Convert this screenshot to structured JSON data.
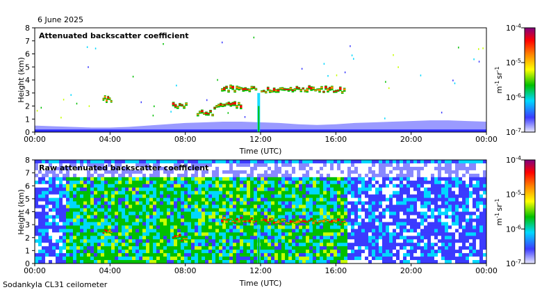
{
  "date_label": "6 June 2025",
  "footer_label": "Sodankyla CL31 ceilometer",
  "chart_data": [
    {
      "type": "heatmap",
      "title": "Attenuated backscatter coefficient",
      "xlabel": "Time (UTC)",
      "ylabel": "Height (km)",
      "xticks": [
        "00:00",
        "04:00",
        "08:00",
        "12:00",
        "16:00",
        "20:00",
        "00:00"
      ],
      "xlim": [
        0,
        24
      ],
      "yticks": [
        "0",
        "1",
        "2",
        "3",
        "4",
        "5",
        "6",
        "7",
        "8"
      ],
      "ylim": [
        0,
        8
      ],
      "colorbar": {
        "label_base": "m",
        "label_exp1": "-1",
        "label_unit": "sr",
        "label_exp2": "-1",
        "tick_base": [
          "10",
          "10",
          "10",
          "10"
        ],
        "tick_exp": [
          "-4",
          "-5",
          "-6",
          "-7"
        ],
        "scale": "log",
        "range": [
          1e-07,
          0.0001
        ],
        "colors": [
          "#e8e8ff",
          "#3b3bff",
          "#00d8ff",
          "#00c000",
          "#ffff00",
          "#ff8000",
          "#ff0000",
          "#800080"
        ]
      },
      "layers": [
        {
          "kind": "boundary",
          "height_km": [
            0.5,
            0.45,
            0.4,
            0.35,
            0.35,
            0.4,
            0.5,
            0.6,
            0.7,
            0.75,
            0.8,
            0.8,
            0.75,
            0.7,
            0.6,
            0.55,
            0.6,
            0.7,
            0.75,
            0.8,
            0.85,
            0.9,
            0.9,
            0.85,
            0.8
          ]
        },
        {
          "kind": "cloud",
          "start_h": 3.6,
          "end_h": 4.1,
          "base_km": 2.35
        },
        {
          "kind": "cloud",
          "start_h": 7.3,
          "end_h": 8.1,
          "base_km": 1.85
        },
        {
          "kind": "cloud",
          "start_h": 8.6,
          "end_h": 9.5,
          "base_km": 1.3
        },
        {
          "kind": "cloud",
          "start_h": 9.5,
          "end_h": 11.0,
          "base_km": 1.9
        },
        {
          "kind": "cloud",
          "start_h": 9.9,
          "end_h": 11.8,
          "base_km": 3.2
        },
        {
          "kind": "cloud",
          "start_h": 12.0,
          "end_h": 16.5,
          "base_km": 3.1
        }
      ]
    },
    {
      "type": "heatmap",
      "title": "Raw attenuated backscatter coefficient",
      "xlabel": "Time (UTC)",
      "ylabel": "Height (km)",
      "xticks": [
        "00:00",
        "04:00",
        "08:00",
        "12:00",
        "16:00",
        "20:00",
        "00:00"
      ],
      "xlim": [
        0,
        24
      ],
      "yticks": [
        "0",
        "1",
        "2",
        "3",
        "4",
        "5",
        "6",
        "7",
        "8"
      ],
      "ylim": [
        0,
        8
      ],
      "colorbar": {
        "label_base": "m",
        "label_exp1": "-1",
        "label_unit": "sr",
        "label_exp2": "-1",
        "tick_base": [
          "10",
          "10",
          "10",
          "10"
        ],
        "tick_exp": [
          "-4",
          "-5",
          "-6",
          "-7"
        ],
        "scale": "log",
        "range": [
          1e-07,
          0.0001
        ],
        "colors": [
          "#e8e8ff",
          "#3b3bff",
          "#00d8ff",
          "#00c000",
          "#ffff00",
          "#ff8000",
          "#ff0000",
          "#800080"
        ]
      },
      "noise": {
        "green_start_h": 1.5,
        "green_end_h": 16.5
      },
      "layers": [
        {
          "kind": "cloud",
          "start_h": 3.6,
          "end_h": 4.1,
          "base_km": 2.35
        },
        {
          "kind": "cloud",
          "start_h": 7.3,
          "end_h": 8.1,
          "base_km": 1.85
        },
        {
          "kind": "cloud",
          "start_h": 9.9,
          "end_h": 11.8,
          "base_km": 3.2
        },
        {
          "kind": "cloud",
          "start_h": 12.0,
          "end_h": 16.5,
          "base_km": 3.1
        }
      ]
    }
  ]
}
